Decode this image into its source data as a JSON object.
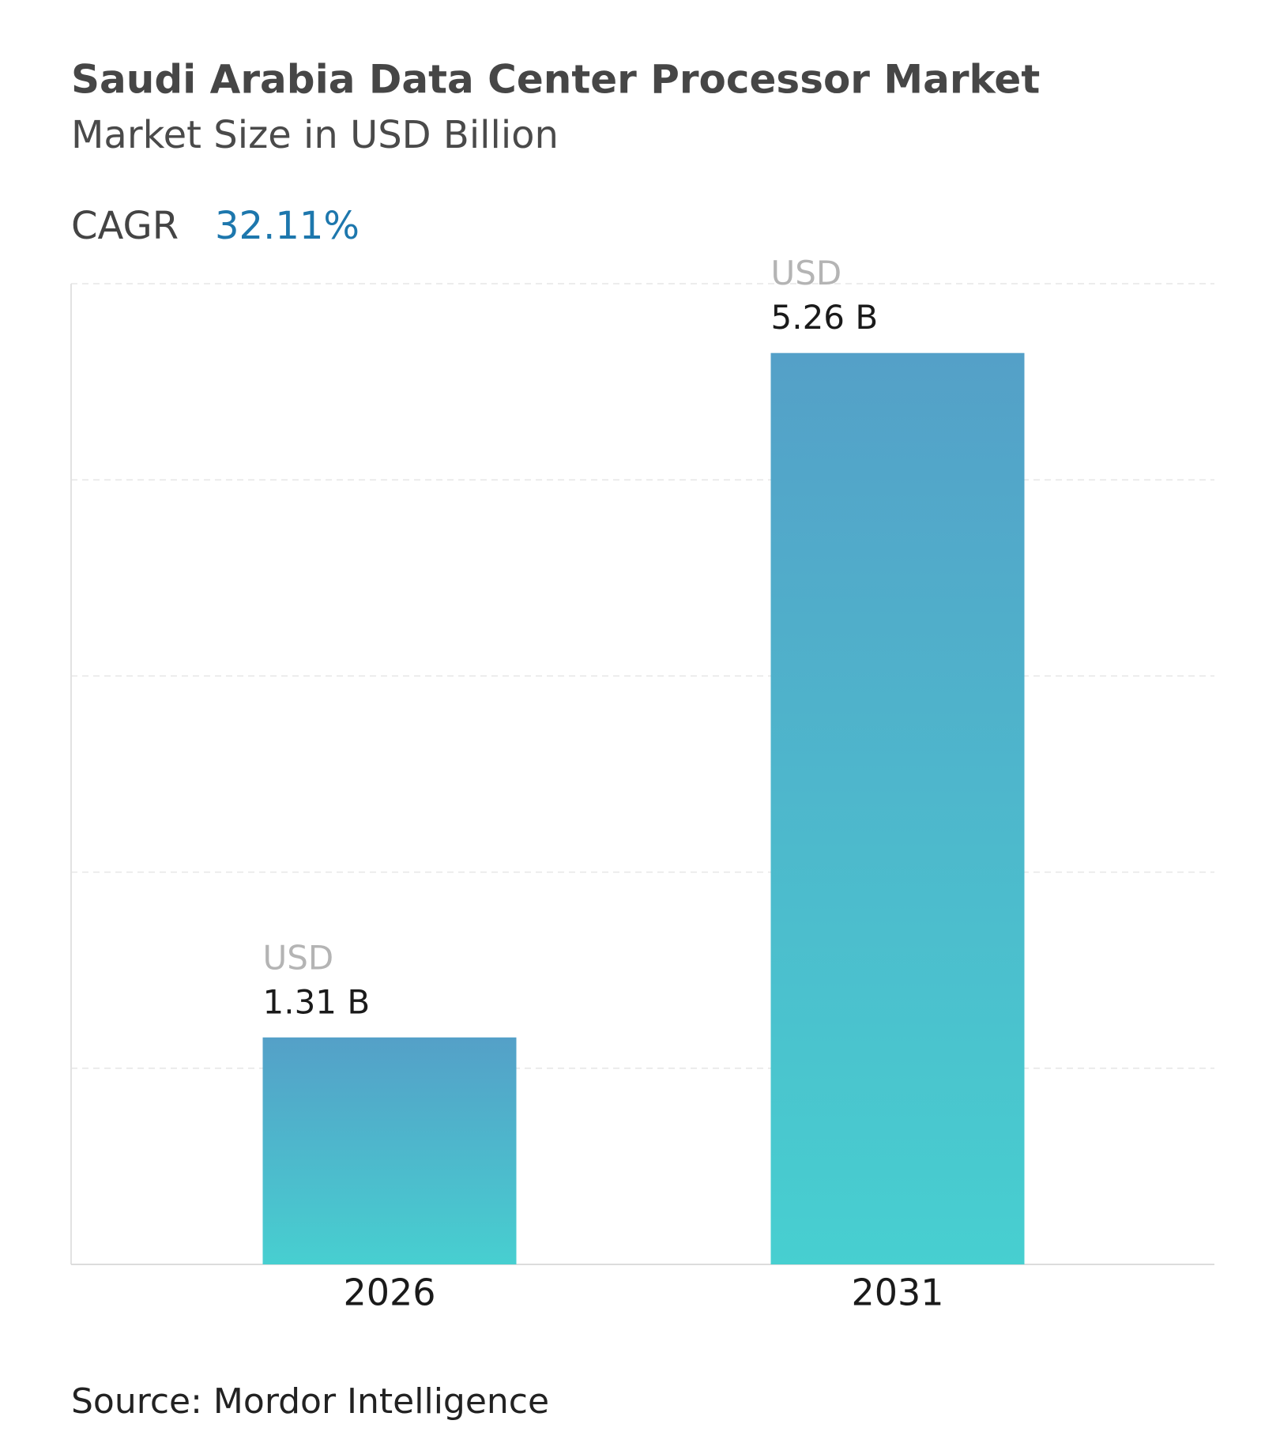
{
  "chart_data": {
    "type": "bar",
    "title": "Saudi Arabia Data Center Processor Market",
    "subtitle": "Market Size in USD Billion",
    "cagr_label": "CAGR",
    "cagr": "32.11%",
    "categories": [
      "2026",
      "2031"
    ],
    "values": [
      1.31,
      5.26
    ],
    "value_labels": [
      "1.31 B",
      "5.26 B"
    ],
    "value_label_prefix": "USD",
    "color": [
      "#54a0c8",
      "#47cfd0"
    ],
    "ylim": [
      0,
      5.66
    ],
    "grid": true,
    "source": "Source: Mordor Intelligence"
  }
}
